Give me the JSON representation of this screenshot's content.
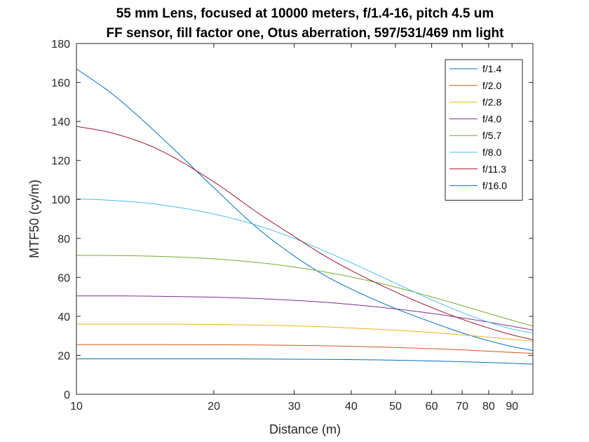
{
  "chart_data": {
    "type": "line",
    "title": [
      "55 mm Lens, focused at 10000 meters, f/1.4-16, pitch 4.5 um",
      "FF sensor, fill factor one, Otus aberration, 597/531/469 nm light"
    ],
    "xlabel": "Distance (m)",
    "ylabel": "MTF50 (cy/m)",
    "xscale": "log",
    "xlim": [
      10,
      100
    ],
    "ylim": [
      0,
      180
    ],
    "xticks": [
      10,
      20,
      30,
      40,
      50,
      60,
      70,
      80,
      90
    ],
    "xtick_labels": [
      "10",
      "20",
      "30",
      "40",
      "50",
      "60",
      "70",
      "80",
      "90"
    ],
    "yticks": [
      0,
      20,
      40,
      60,
      80,
      100,
      120,
      140,
      160,
      180
    ],
    "ytick_labels": [
      "0",
      "20",
      "40",
      "60",
      "80",
      "100",
      "120",
      "140",
      "160",
      "180"
    ],
    "grid": false,
    "legend_position": "top-right",
    "x": [
      10,
      12,
      15,
      20,
      25,
      30,
      35,
      40,
      50,
      60,
      70,
      80,
      90,
      100
    ],
    "series": [
      {
        "name": "f/1.4",
        "color": "#0072BD",
        "values": [
          167,
          154,
          134,
          106,
          85,
          71,
          61,
          54,
          44,
          37,
          31.5,
          27.5,
          24.5,
          22.5
        ]
      },
      {
        "name": "f/2.0",
        "color": "#D95319",
        "values": [
          25.5,
          25.5,
          25.5,
          25.4,
          25.3,
          25.1,
          24.9,
          24.6,
          24.0,
          23.4,
          22.8,
          22.1,
          21.5,
          21.0
        ]
      },
      {
        "name": "f/2.8",
        "color": "#EDB120",
        "values": [
          36,
          36,
          36,
          35.8,
          35.5,
          35.1,
          34.6,
          34.0,
          32.9,
          31.7,
          30.5,
          29.3,
          28.2,
          27.3
        ]
      },
      {
        "name": "f/4.0",
        "color": "#7E2F8E",
        "values": [
          50.5,
          50.5,
          50.3,
          49.8,
          49.1,
          48.2,
          47.2,
          46.1,
          43.8,
          41.5,
          39.2,
          37.0,
          34.9,
          33.0
        ]
      },
      {
        "name": "f/5.7",
        "color": "#77AC30",
        "values": [
          71.3,
          71.2,
          70.8,
          69.5,
          67.6,
          65.3,
          62.8,
          60.2,
          55.0,
          50.0,
          45.5,
          41.5,
          38.0,
          35.0
        ]
      },
      {
        "name": "f/8.0",
        "color": "#4DBEEE",
        "values": [
          100.3,
          99.5,
          97.5,
          92.5,
          86.5,
          80.0,
          73.5,
          67.5,
          57.0,
          48.5,
          42.0,
          37.0,
          33.5,
          31.5
        ]
      },
      {
        "name": "f/11.3",
        "color": "#A2142F",
        "values": [
          137.5,
          134,
          126,
          109,
          93,
          81,
          71,
          63.5,
          52.5,
          44.5,
          38.5,
          34,
          30.5,
          28
        ]
      },
      {
        "name": "f/16.0",
        "color": "#0072BD",
        "values": [
          18.2,
          18.2,
          18.2,
          18.2,
          18.1,
          18.0,
          17.9,
          17.8,
          17.5,
          17.1,
          16.7,
          16.3,
          15.9,
          15.5
        ]
      }
    ]
  }
}
